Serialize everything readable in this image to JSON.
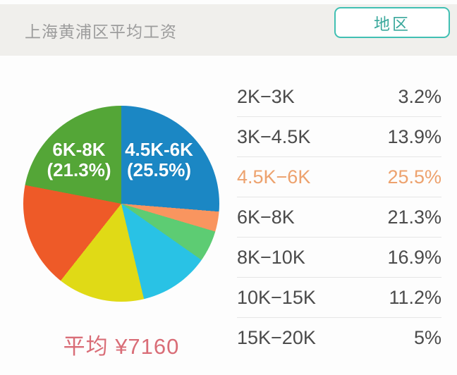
{
  "header": {
    "title": "上海黄浦区平均工资",
    "region_button": "地区"
  },
  "chart_data": {
    "type": "pie",
    "title": "上海黄浦区平均工资",
    "unit": "percent",
    "slice_order": "clockwise from 12 o'clock",
    "slices": [
      {
        "label": "4.5K-6K",
        "value": 25.5,
        "color": "#1b87c4"
      },
      {
        "label": "2K-3K",
        "value": 3.2,
        "color": "#f9955f"
      },
      {
        "label": "15K-20K",
        "value": 5.0,
        "color": "#5dcc73"
      },
      {
        "label": "10K-15K",
        "value": 11.2,
        "color": "#29c2e5"
      },
      {
        "label": "3K-4.5K",
        "value": 13.9,
        "color": "#e0da16"
      },
      {
        "label": "8K-10K",
        "value": 16.9,
        "color": "#ee5a28"
      },
      {
        "label": "6K-8K",
        "value": 21.3,
        "color": "#54a637"
      }
    ],
    "labels_on_pie": [
      {
        "line1": "6K-8K",
        "line2": "(21.3%)"
      },
      {
        "line1": "4.5K-6K",
        "line2": "(25.5%)"
      }
    ],
    "average_label": "平均 ¥7160"
  },
  "table": {
    "rows": [
      {
        "range": "2K−3K",
        "percent": "3.2%",
        "highlighted": false
      },
      {
        "range": "3K−4.5K",
        "percent": "13.9%",
        "highlighted": false
      },
      {
        "range": "4.5K−6K",
        "percent": "25.5%",
        "highlighted": true
      },
      {
        "range": "6K−8K",
        "percent": "21.3%",
        "highlighted": false
      },
      {
        "range": "8K−10K",
        "percent": "16.9%",
        "highlighted": false
      },
      {
        "range": "10K−15K",
        "percent": "11.2%",
        "highlighted": false
      },
      {
        "range": "15K−20K",
        "percent": "5%",
        "highlighted": false
      }
    ],
    "highlight_color": "#eda26e",
    "text_color": "#4b4b4b"
  },
  "colors": {
    "header_bg": "#f0efec",
    "page_bg": "#fdfdfd",
    "title_text": "#9c9c9c",
    "button_teal": "#41c0b3",
    "average_text": "#d96d77",
    "row_divider": "#e6e6e6"
  }
}
